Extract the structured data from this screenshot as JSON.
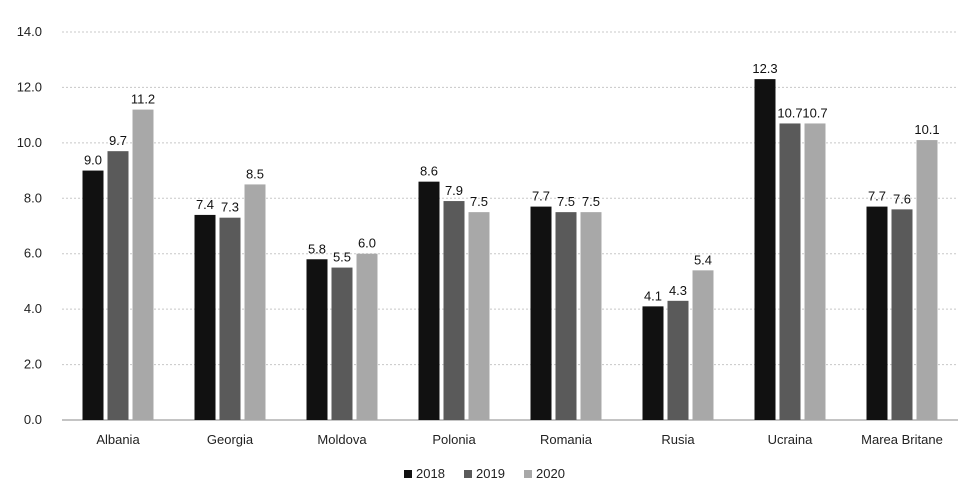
{
  "chart_data": {
    "type": "bar",
    "categories": [
      "Albania",
      "Georgia",
      "Moldova",
      "Polonia",
      "Romania",
      "Rusia",
      "Ucraina",
      "Marea Britane"
    ],
    "series": [
      {
        "name": "2018",
        "color": "#111111",
        "values": [
          9.0,
          7.4,
          5.8,
          8.6,
          7.7,
          4.1,
          12.3,
          7.7
        ]
      },
      {
        "name": "2019",
        "color": "#5a5a5a",
        "values": [
          9.7,
          7.3,
          5.5,
          7.9,
          7.5,
          4.3,
          10.7,
          7.6
        ]
      },
      {
        "name": "2020",
        "color": "#a8a8a8",
        "values": [
          11.2,
          8.5,
          6.0,
          7.5,
          7.5,
          5.4,
          10.7,
          10.1
        ]
      }
    ],
    "yticks": [
      "0.0",
      "2.0",
      "4.0",
      "6.0",
      "8.0",
      "10.0",
      "12.0",
      "14.0"
    ],
    "ylim": [
      0,
      14
    ],
    "grid": true,
    "legend_position": "bottom",
    "data_labels": true
  }
}
